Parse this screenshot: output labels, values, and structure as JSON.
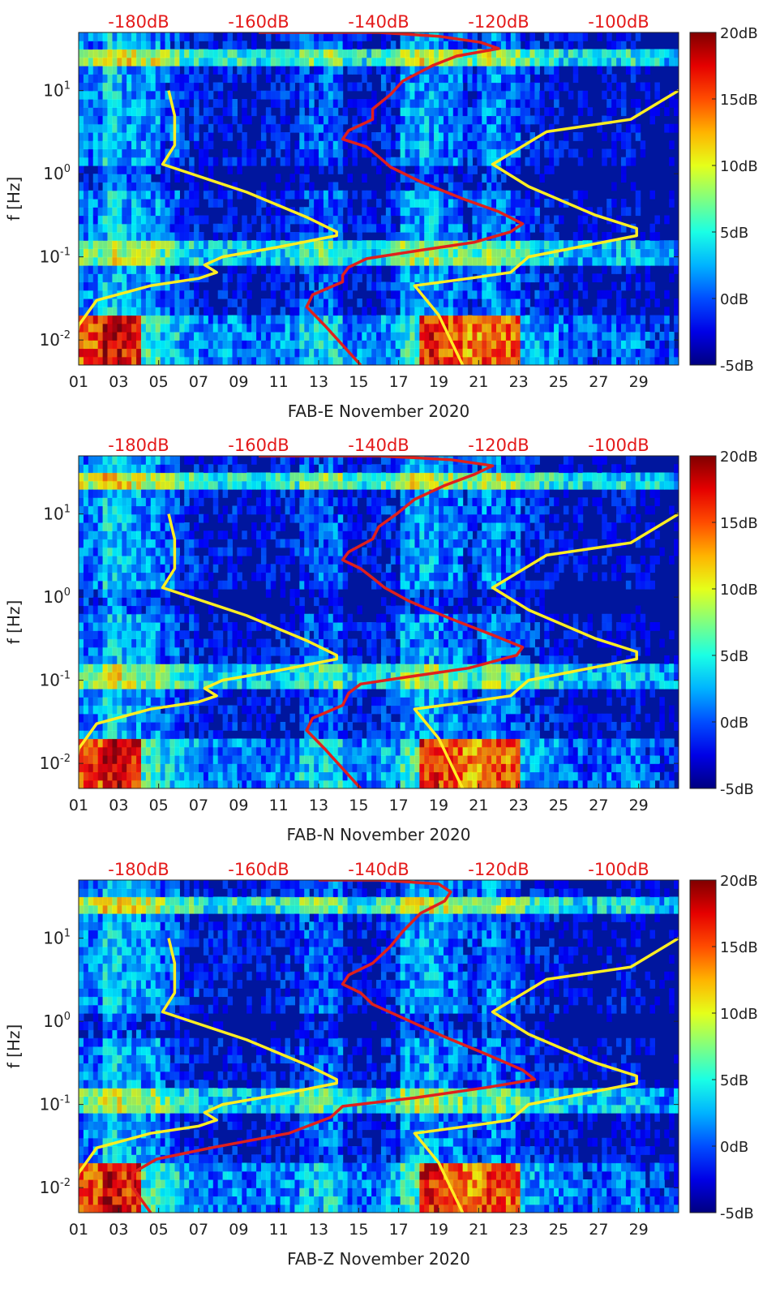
{
  "colors": {
    "background_spectrogram": "#00169e",
    "yellow_curves": "#ffee22",
    "red_curve": "#e0201c",
    "top_axis_text": "#e41a1a"
  },
  "colorbar": {
    "colormap": "jet",
    "range": [
      -5,
      20
    ],
    "ticks": [
      "20dB",
      "15dB",
      "10dB",
      "5dB",
      "0dB",
      "-5dB"
    ]
  },
  "chart_data": [
    {
      "type": "heatmap",
      "station": "FAB-E",
      "xlabel": "FAB-E November 2020",
      "ylabel": "f [Hz]",
      "x_ticks": [
        "01",
        "03",
        "05",
        "07",
        "09",
        "11",
        "13",
        "15",
        "17",
        "19",
        "21",
        "23",
        "25",
        "27",
        "29"
      ],
      "y_scale": "log",
      "ylim": [
        0.005,
        50
      ],
      "y_ticks": [
        {
          "value": 0.01,
          "base": "10",
          "exp": "-2"
        },
        {
          "value": 0.1,
          "base": "10",
          "exp": "-1"
        },
        {
          "value": 1,
          "base": "10",
          "exp": "0"
        },
        {
          "value": 10,
          "base": "10",
          "exp": "1"
        }
      ],
      "top_axis_ticks": [
        "-180dB",
        "-160dB",
        "-140dB",
        "-120dB",
        "-100dB"
      ],
      "top_axis_range": [
        -190,
        -90
      ],
      "series": [
        {
          "color": "yellow",
          "points": [
            [
              -191,
              0.005
            ],
            [
              -190,
              0.015
            ],
            [
              -187,
              0.03
            ],
            [
              -178,
              0.045
            ],
            [
              -170,
              0.055
            ],
            [
              -167,
              0.065
            ],
            [
              -169,
              0.08
            ],
            [
              -166,
              0.1
            ],
            [
              -157,
              0.13
            ],
            [
              -147,
              0.18
            ],
            [
              -147,
              0.2
            ],
            [
              -152,
              0.3
            ],
            [
              -162,
              0.6
            ],
            [
              -176,
              1.3
            ],
            [
              -174,
              2.2
            ],
            [
              -174,
              5
            ],
            [
              -175,
              10
            ]
          ]
        },
        {
          "color": "yellow",
          "points": [
            [
              -126,
              0.005
            ],
            [
              -130,
              0.02
            ],
            [
              -134,
              0.045
            ],
            [
              -125,
              0.055
            ],
            [
              -118,
              0.065
            ],
            [
              -115,
              0.1
            ],
            [
              -107,
              0.13
            ],
            [
              -97,
              0.18
            ],
            [
              -97,
              0.22
            ],
            [
              -104,
              0.32
            ],
            [
              -115,
              0.7
            ],
            [
              -121,
              1.3
            ],
            [
              -112,
              3.2
            ],
            [
              -98,
              4.5
            ],
            [
              -90,
              10
            ]
          ]
        },
        {
          "color": "red",
          "points": [
            [
              -143,
              0.005
            ],
            [
              -149,
              0.015
            ],
            [
              -152,
              0.025
            ],
            [
              -151,
              0.035
            ],
            [
              -146,
              0.05
            ],
            [
              -146,
              0.06
            ],
            [
              -145,
              0.075
            ],
            [
              -142,
              0.095
            ],
            [
              -133,
              0.12
            ],
            [
              -124,
              0.15
            ],
            [
              -118,
              0.2
            ],
            [
              -116,
              0.25
            ],
            [
              -120,
              0.35
            ],
            [
              -126,
              0.5
            ],
            [
              -133,
              0.8
            ],
            [
              -138,
              1.2
            ],
            [
              -140,
              1.6
            ],
            [
              -142,
              2.1
            ],
            [
              -146,
              2.6
            ],
            [
              -145,
              3.3
            ],
            [
              -141,
              4.5
            ],
            [
              -141,
              6
            ],
            [
              -138,
              9
            ],
            [
              -136,
              13
            ],
            [
              -131,
              20
            ],
            [
              -127,
              26
            ],
            [
              -120,
              32
            ],
            [
              -123,
              38
            ],
            [
              -130,
              45
            ],
            [
              -140,
              50
            ],
            [
              -160,
              50
            ]
          ]
        }
      ]
    },
    {
      "type": "heatmap",
      "station": "FAB-N",
      "xlabel": "FAB-N November 2020",
      "ylabel": "f [Hz]",
      "x_ticks": [
        "01",
        "03",
        "05",
        "07",
        "09",
        "11",
        "13",
        "15",
        "17",
        "19",
        "21",
        "23",
        "25",
        "27",
        "29"
      ],
      "y_scale": "log",
      "ylim": [
        0.005,
        50
      ],
      "y_ticks": [
        {
          "value": 0.01,
          "base": "10",
          "exp": "-2"
        },
        {
          "value": 0.1,
          "base": "10",
          "exp": "-1"
        },
        {
          "value": 1,
          "base": "10",
          "exp": "0"
        },
        {
          "value": 10,
          "base": "10",
          "exp": "1"
        }
      ],
      "top_axis_ticks": [
        "-180dB",
        "-160dB",
        "-140dB",
        "-120dB",
        "-100dB"
      ],
      "top_axis_range": [
        -190,
        -90
      ],
      "series": [
        {
          "color": "yellow",
          "points": [
            [
              -191,
              0.005
            ],
            [
              -190,
              0.015
            ],
            [
              -187,
              0.03
            ],
            [
              -178,
              0.045
            ],
            [
              -170,
              0.055
            ],
            [
              -167,
              0.065
            ],
            [
              -169,
              0.08
            ],
            [
              -166,
              0.1
            ],
            [
              -157,
              0.13
            ],
            [
              -147,
              0.18
            ],
            [
              -147,
              0.2
            ],
            [
              -152,
              0.3
            ],
            [
              -162,
              0.6
            ],
            [
              -176,
              1.3
            ],
            [
              -174,
              2.2
            ],
            [
              -174,
              5
            ],
            [
              -175,
              10
            ]
          ]
        },
        {
          "color": "yellow",
          "points": [
            [
              -126,
              0.005
            ],
            [
              -130,
              0.02
            ],
            [
              -134,
              0.045
            ],
            [
              -125,
              0.055
            ],
            [
              -118,
              0.065
            ],
            [
              -115,
              0.1
            ],
            [
              -107,
              0.13
            ],
            [
              -97,
              0.18
            ],
            [
              -97,
              0.22
            ],
            [
              -104,
              0.32
            ],
            [
              -115,
              0.7
            ],
            [
              -121,
              1.3
            ],
            [
              -112,
              3.2
            ],
            [
              -98,
              4.5
            ],
            [
              -90,
              10
            ]
          ]
        },
        {
          "color": "red",
          "points": [
            [
              -143,
              0.005
            ],
            [
              -149,
              0.015
            ],
            [
              -152,
              0.025
            ],
            [
              -151,
              0.035
            ],
            [
              -146,
              0.05
            ],
            [
              -145,
              0.07
            ],
            [
              -143,
              0.09
            ],
            [
              -135,
              0.11
            ],
            [
              -125,
              0.14
            ],
            [
              -117,
              0.2
            ],
            [
              -116,
              0.25
            ],
            [
              -121,
              0.35
            ],
            [
              -128,
              0.55
            ],
            [
              -135,
              0.9
            ],
            [
              -139,
              1.3
            ],
            [
              -141,
              1.7
            ],
            [
              -143,
              2.2
            ],
            [
              -146,
              2.8
            ],
            [
              -145,
              3.5
            ],
            [
              -141,
              5
            ],
            [
              -140,
              7
            ],
            [
              -137,
              10
            ],
            [
              -134,
              15
            ],
            [
              -129,
              22
            ],
            [
              -124,
              30
            ],
            [
              -121,
              38
            ],
            [
              -128,
              45
            ],
            [
              -140,
              50
            ],
            [
              -160,
              50
            ]
          ]
        }
      ]
    },
    {
      "type": "heatmap",
      "station": "FAB-Z",
      "xlabel": "FAB-Z November 2020",
      "ylabel": "f [Hz]",
      "x_ticks": [
        "01",
        "03",
        "05",
        "07",
        "09",
        "11",
        "13",
        "15",
        "17",
        "19",
        "21",
        "23",
        "25",
        "27",
        "29"
      ],
      "y_scale": "log",
      "ylim": [
        0.005,
        50
      ],
      "y_ticks": [
        {
          "value": 0.01,
          "base": "10",
          "exp": "-2"
        },
        {
          "value": 0.1,
          "base": "10",
          "exp": "-1"
        },
        {
          "value": 1,
          "base": "10",
          "exp": "0"
        },
        {
          "value": 10,
          "base": "10",
          "exp": "1"
        }
      ],
      "top_axis_ticks": [
        "-180dB",
        "-160dB",
        "-140dB",
        "-120dB",
        "-100dB"
      ],
      "top_axis_range": [
        -190,
        -90
      ],
      "series": [
        {
          "color": "yellow",
          "points": [
            [
              -191,
              0.005
            ],
            [
              -190,
              0.015
            ],
            [
              -187,
              0.03
            ],
            [
              -178,
              0.045
            ],
            [
              -170,
              0.055
            ],
            [
              -167,
              0.065
            ],
            [
              -169,
              0.08
            ],
            [
              -166,
              0.1
            ],
            [
              -157,
              0.13
            ],
            [
              -147,
              0.18
            ],
            [
              -147,
              0.2
            ],
            [
              -152,
              0.3
            ],
            [
              -162,
              0.6
            ],
            [
              -176,
              1.3
            ],
            [
              -174,
              2.2
            ],
            [
              -174,
              5
            ],
            [
              -175,
              10
            ]
          ]
        },
        {
          "color": "yellow",
          "points": [
            [
              -126,
              0.005
            ],
            [
              -130,
              0.02
            ],
            [
              -134,
              0.045
            ],
            [
              -125,
              0.055
            ],
            [
              -118,
              0.065
            ],
            [
              -115,
              0.1
            ],
            [
              -107,
              0.13
            ],
            [
              -97,
              0.18
            ],
            [
              -97,
              0.22
            ],
            [
              -104,
              0.32
            ],
            [
              -115,
              0.7
            ],
            [
              -121,
              1.3
            ],
            [
              -112,
              3.2
            ],
            [
              -98,
              4.5
            ],
            [
              -90,
              10
            ]
          ]
        },
        {
          "color": "red",
          "points": [
            [
              -178,
              0.005
            ],
            [
              -181,
              0.01
            ],
            [
              -181,
              0.015
            ],
            [
              -177,
              0.022
            ],
            [
              -168,
              0.03
            ],
            [
              -155,
              0.045
            ],
            [
              -148,
              0.07
            ],
            [
              -146,
              0.095
            ],
            [
              -134,
              0.12
            ],
            [
              -122,
              0.16
            ],
            [
              -114,
              0.2
            ],
            [
              -116,
              0.26
            ],
            [
              -122,
              0.4
            ],
            [
              -129,
              0.65
            ],
            [
              -136,
              1.1
            ],
            [
              -141,
              1.6
            ],
            [
              -143,
              2.2
            ],
            [
              -146,
              2.8
            ],
            [
              -145,
              3.6
            ],
            [
              -141,
              5
            ],
            [
              -138,
              8
            ],
            [
              -136,
              12
            ],
            [
              -133,
              20
            ],
            [
              -129,
              28
            ],
            [
              -128,
              36
            ],
            [
              -130,
              45
            ],
            [
              -140,
              50
            ],
            [
              -150,
              50
            ]
          ]
        }
      ]
    }
  ]
}
